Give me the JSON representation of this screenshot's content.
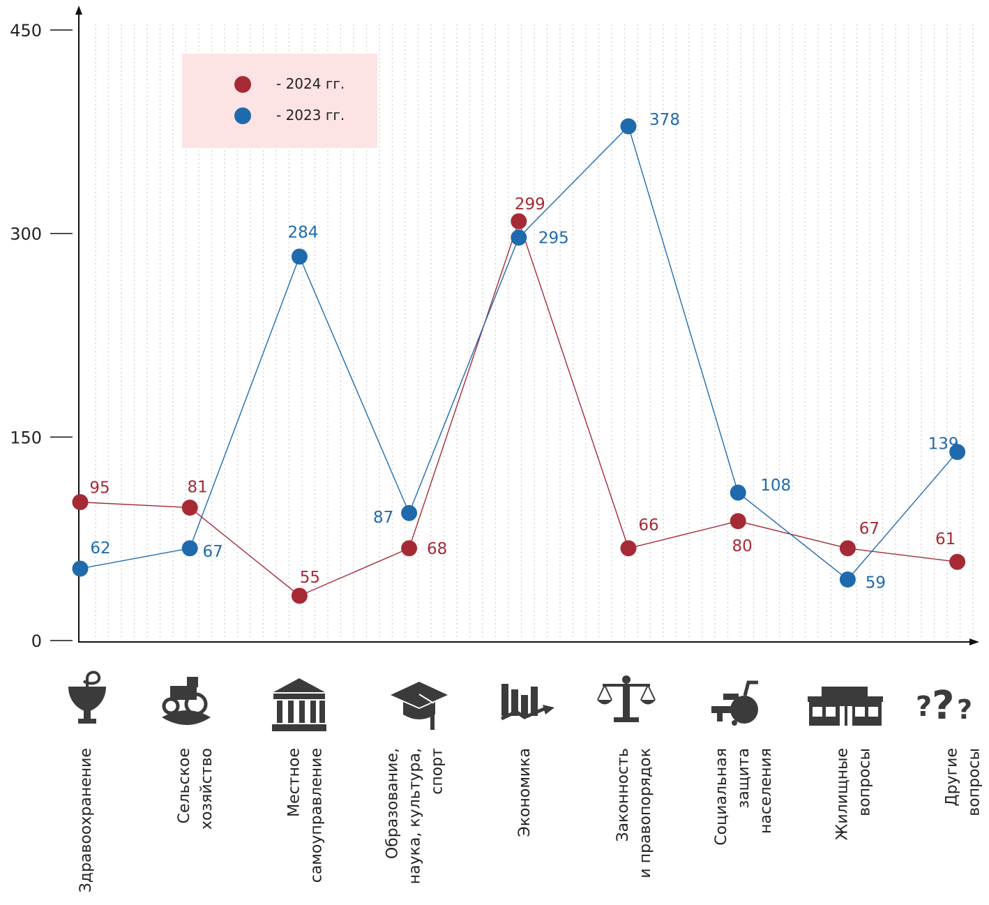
{
  "chart_data": {
    "type": "line",
    "title": "",
    "xlabel": "",
    "ylabel": "",
    "ylim": [
      0,
      450
    ],
    "yticks": [
      0,
      150,
      300,
      450
    ],
    "grid": "vertical dotted",
    "legend_position": "top-left",
    "categories": [
      [
        "Здравоохранение"
      ],
      [
        "Сельское",
        "хозяйство"
      ],
      [
        "Местное",
        "самоуправление"
      ],
      [
        "Образование,",
        "наука, культура,",
        "спорт"
      ],
      [
        "Экономика"
      ],
      [
        "Законность",
        "и правопорядок"
      ],
      [
        "Социальная",
        "защита",
        "населения"
      ],
      [
        "Жилищные",
        "вопросы"
      ],
      [
        "Другие",
        "вопросы"
      ]
    ],
    "category_icons": [
      "medicine-icon",
      "tractor-icon",
      "government-building-icon",
      "graduation-cap-icon",
      "economy-chart-icon",
      "scales-icon",
      "wheelchair-icon",
      "apartment-building-icon",
      "question-marks-icon"
    ],
    "series": [
      {
        "name": "- 2024 гг.",
        "color": "#a62a35",
        "plotted": [
          102,
          98,
          33,
          68,
          309,
          68,
          88,
          68,
          58
        ],
        "values": [
          95,
          81,
          55,
          68,
          299,
          66,
          80,
          67,
          61
        ]
      },
      {
        "name": "- 2023 гг.",
        "color": "#1f6aad",
        "plotted": [
          53,
          68,
          283,
          94,
          297,
          379,
          109,
          45,
          139
        ],
        "values": [
          62,
          67,
          284,
          87,
          295,
          378,
          108,
          59,
          139
        ]
      }
    ]
  },
  "colors": {
    "legend_background": "#fde3e3",
    "axis": "#111111",
    "grid": "#d0d0d0"
  }
}
